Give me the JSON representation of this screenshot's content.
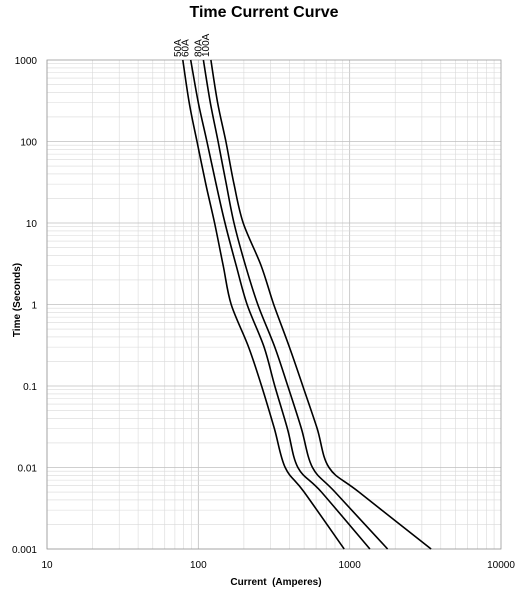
{
  "chart_data": {
    "type": "line",
    "title": "Time Current Curve",
    "xlabel": "Current  (Amperes)",
    "ylabel": "Time (Seconds)",
    "x_scale": "log",
    "y_scale": "log",
    "xlim": [
      10,
      10000
    ],
    "ylim": [
      0.001,
      1000
    ],
    "x_ticks": [
      "10",
      "100",
      "1000",
      "10000"
    ],
    "y_ticks": [
      "0.001",
      "0.01",
      "0.1",
      "1",
      "10",
      "100",
      "1000"
    ],
    "grid": true,
    "series": [
      {
        "name": "50A",
        "points": [
          [
            79,
            1000
          ],
          [
            87,
            300
          ],
          [
            98,
            100
          ],
          [
            112,
            30
          ],
          [
            128,
            10
          ],
          [
            146,
            3
          ],
          [
            165,
            1
          ],
          [
            215,
            0.3
          ],
          [
            262,
            0.1
          ],
          [
            318,
            0.03
          ],
          [
            375,
            0.01
          ],
          [
            500,
            0.005
          ],
          [
            920,
            0.001
          ]
        ]
      },
      {
        "name": "60A",
        "points": [
          [
            89,
            1000
          ],
          [
            100,
            300
          ],
          [
            114,
            100
          ],
          [
            131,
            30
          ],
          [
            150,
            10
          ],
          [
            178,
            3
          ],
          [
            210,
            1
          ],
          [
            272,
            0.3
          ],
          [
            320,
            0.1
          ],
          [
            388,
            0.03
          ],
          [
            455,
            0.01
          ],
          [
            650,
            0.005
          ],
          [
            1360,
            0.001
          ]
        ]
      },
      {
        "name": "80A",
        "points": [
          [
            108,
            1000
          ],
          [
            120,
            300
          ],
          [
            135,
            100
          ],
          [
            153,
            30
          ],
          [
            172,
            10
          ],
          [
            205,
            3
          ],
          [
            247,
            1
          ],
          [
            320,
            0.3
          ],
          [
            390,
            0.1
          ],
          [
            480,
            0.03
          ],
          [
            568,
            0.01
          ],
          [
            800,
            0.005
          ],
          [
            1780,
            0.001
          ]
        ]
      },
      {
        "name": "100A",
        "points": [
          [
            121,
            1000
          ],
          [
            134,
            300
          ],
          [
            152,
            100
          ],
          [
            172,
            30
          ],
          [
            198,
            10
          ],
          [
            260,
            3
          ],
          [
            315,
            1
          ],
          [
            400,
            0.3
          ],
          [
            490,
            0.1
          ],
          [
            610,
            0.03
          ],
          [
            730,
            0.01
          ],
          [
            1150,
            0.005
          ],
          [
            3450,
            0.001
          ]
        ]
      }
    ]
  }
}
